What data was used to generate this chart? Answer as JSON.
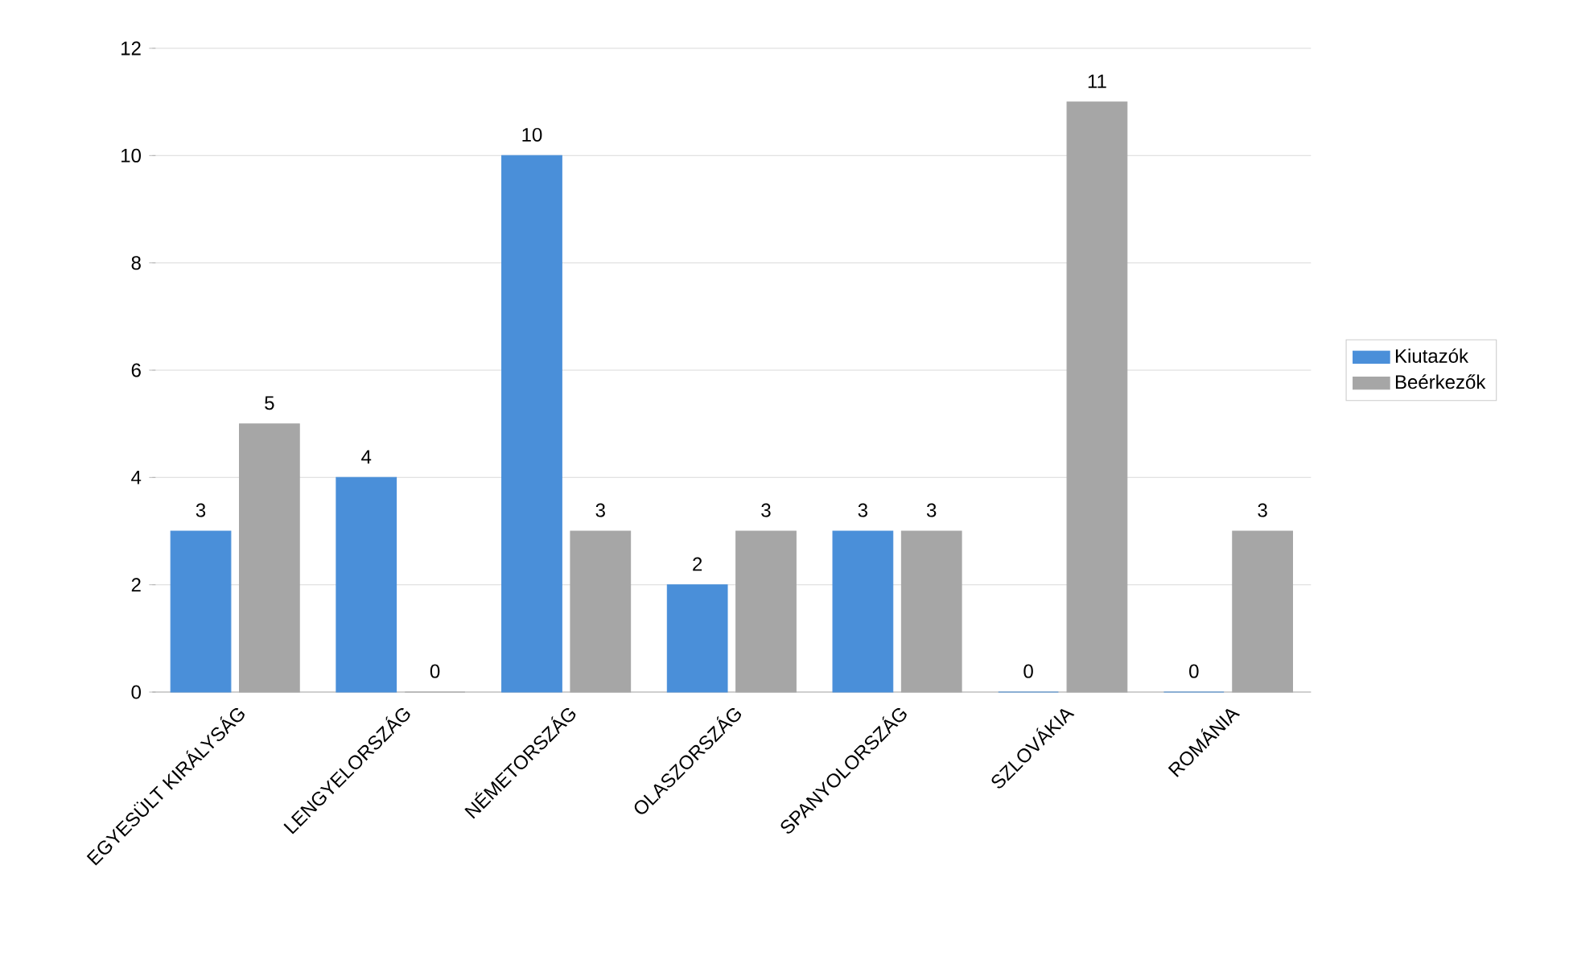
{
  "chart_data": {
    "type": "bar",
    "categories": [
      "EGYESÜLT KIRÁLYSÁG",
      "LENGYELORSZÁG",
      "NÉMETORSZÁG",
      "OLASZORSZÁG",
      "SPANYOLORSZÁG",
      "SZLOVÁKIA",
      "ROMÁNIA"
    ],
    "series": [
      {
        "name": "Kiutazók",
        "color": "#4a8fd9",
        "values": [
          3,
          4,
          10,
          2,
          3,
          0,
          0
        ]
      },
      {
        "name": "Beérkezők",
        "color": "#a6a6a6",
        "values": [
          5,
          0,
          3,
          3,
          3,
          11,
          3
        ]
      }
    ],
    "ylim": [
      0,
      12
    ],
    "yticks": [
      0,
      2,
      4,
      6,
      8,
      10,
      12
    ],
    "grid": "y",
    "legend": "right",
    "data_labels": true
  }
}
